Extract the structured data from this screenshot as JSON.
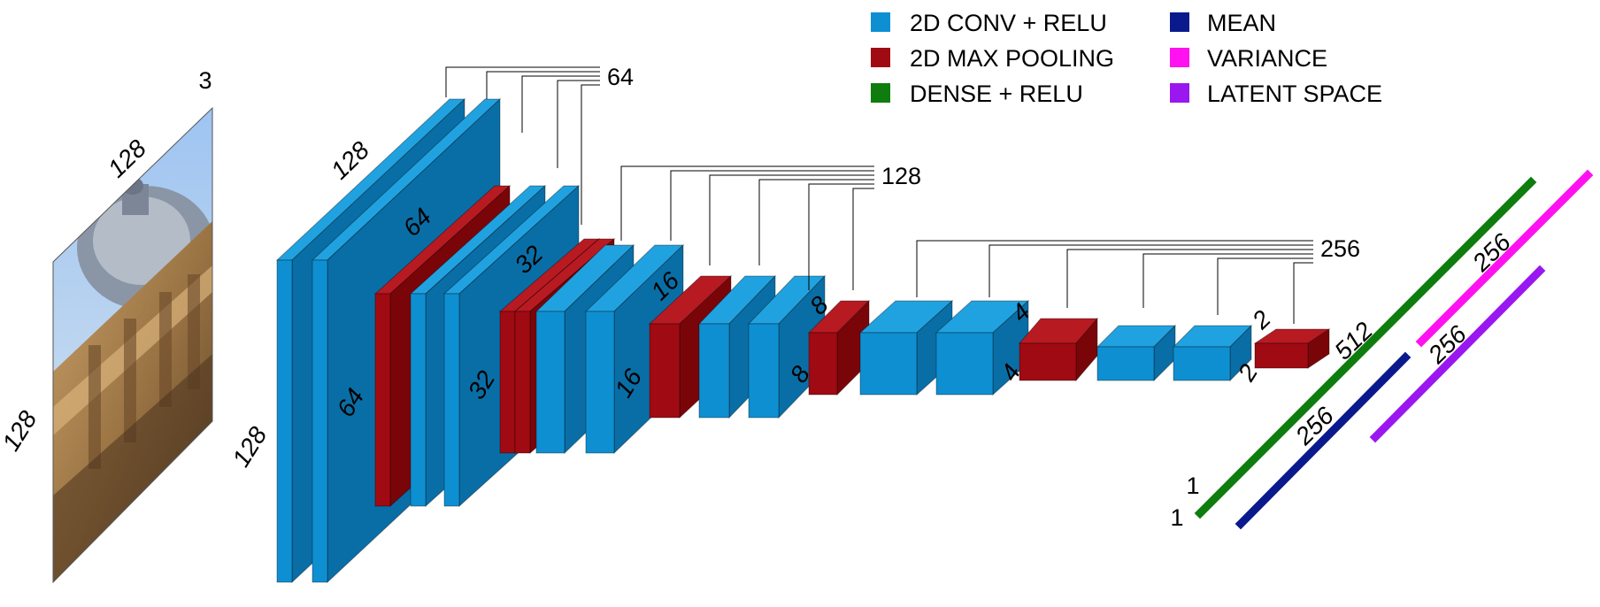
{
  "colors": {
    "conv": "#0e8fd1",
    "conv_top": "#21a2e0",
    "conv_side": "#0a6ea6",
    "pool": "#a00a12",
    "pool_top": "#b81a22",
    "pool_side": "#7a0509",
    "dense": "#0e7d0e",
    "mean": "#0a1a8c",
    "variance": "#ff11f0",
    "latent": "#9a17f0"
  },
  "legend": [
    {
      "label": "2D CONV + RELU",
      "color": "#0e8fd1"
    },
    {
      "label": "2D MAX POOLING",
      "color": "#a00a12"
    },
    {
      "label": "DENSE + RELU",
      "color": "#0e7d0e"
    },
    {
      "label": "MEAN",
      "color": "#0a1a8c"
    },
    {
      "label": "VARIANCE",
      "color": "#ff11f0"
    },
    {
      "label": "LATENT SPACE",
      "color": "#9a17f0"
    }
  ],
  "input": {
    "channels": "3",
    "width": "128",
    "height": "128"
  },
  "labels": {
    "b1_width": "128",
    "b1_height": "128",
    "b1_channels": "64",
    "pool1_width": "64",
    "pool1_height": "64",
    "b2_channels": "128",
    "pool2_width": "32",
    "pool2_height": "32",
    "b3_channels": "256",
    "pool3_width": "16",
    "pool3_height": "16",
    "pool4_width": "8",
    "pool4_height": "8",
    "pool5_width": "4",
    "pool5_height": "4",
    "pool6_width": "2",
    "pool6_height": "2",
    "dense_units": "512",
    "dense_one_a": "1",
    "dense_one_b": "1",
    "mean_units": "256",
    "variance_units": "256",
    "latent_units": "256"
  }
}
